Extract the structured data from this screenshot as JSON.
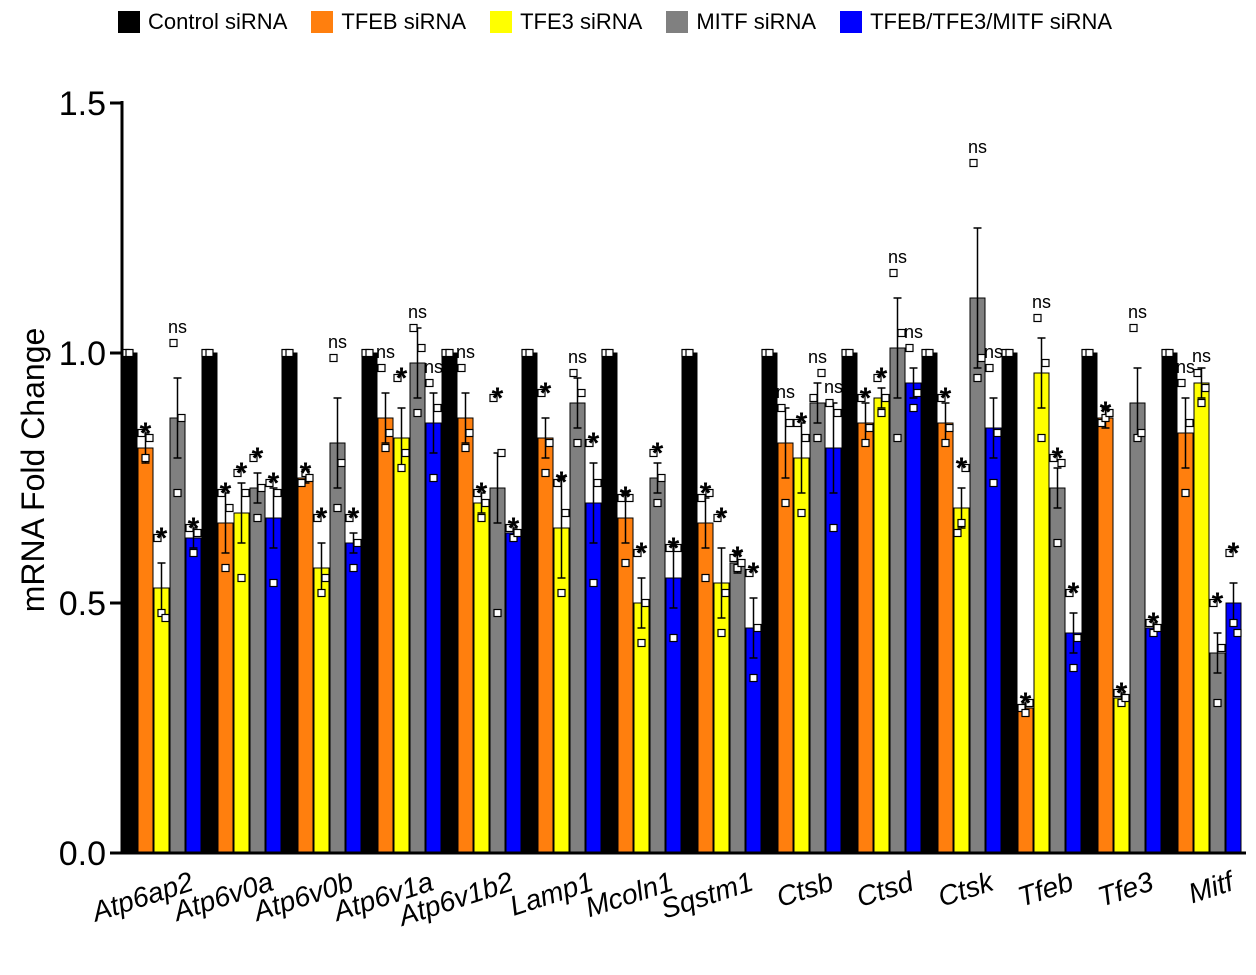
{
  "chart_data": {
    "type": "bar",
    "ylabel": "mRNA Fold Change",
    "ylim": [
      0,
      1.5
    ],
    "yticks": [
      0.0,
      0.5,
      1.0,
      1.5
    ],
    "ytick_labels": [
      "0.0",
      "0.5",
      "1.0",
      "1.5"
    ],
    "legend_position": "top",
    "categories": [
      "Atp6ap2",
      "Atp6v0a",
      "Atp6v0b",
      "Atp6v1a",
      "Atp6v1b2",
      "Lamp1",
      "Mcoln1",
      "Sqstm1",
      "Ctsb",
      "Ctsd",
      "Ctsk",
      "Tfeb",
      "Tfe3",
      "Mitf"
    ],
    "series": [
      {
        "name": "Control siRNA",
        "color": "#000000",
        "values": [
          1,
          1,
          1,
          1,
          1,
          1,
          1,
          1,
          1,
          1,
          1,
          1,
          1,
          1
        ],
        "errors": [
          0,
          0,
          0,
          0,
          0,
          0,
          0,
          0,
          0,
          0,
          0,
          0,
          0,
          0
        ],
        "points": [
          [
            1,
            1
          ],
          [
            1,
            1
          ],
          [
            1,
            1
          ],
          [
            1,
            1
          ],
          [
            1,
            1
          ],
          [
            1,
            1
          ],
          [
            1,
            1
          ],
          [
            1,
            1
          ],
          [
            1,
            1
          ],
          [
            1,
            1
          ],
          [
            1,
            1
          ],
          [
            1,
            1
          ],
          [
            1,
            1
          ],
          [
            1,
            1
          ]
        ],
        "annotations": [
          "",
          "",
          "",
          "",
          "",
          "",
          "",
          "",
          "",
          "",
          "",
          "",
          "",
          ""
        ]
      },
      {
        "name": "TFEB siRNA",
        "color": "#ff7f0e",
        "values": [
          0.81,
          0.66,
          0.75,
          0.87,
          0.87,
          0.83,
          0.67,
          0.66,
          0.82,
          0.86,
          0.86,
          0.29,
          0.87,
          0.84
        ],
        "errors": [
          0.03,
          0.06,
          0.01,
          0.05,
          0.05,
          0.04,
          0.05,
          0.05,
          0.07,
          0.04,
          0.04,
          0.01,
          0.02,
          0.07
        ],
        "points": [
          [
            0.84,
            0.79,
            0.83
          ],
          [
            0.72,
            0.57,
            0.69
          ],
          [
            0.74,
            0.76,
            0.75
          ],
          [
            0.97,
            0.81,
            0.84
          ],
          [
            0.97,
            0.81,
            0.84
          ],
          [
            0.92,
            0.76,
            0.82
          ],
          [
            0.71,
            0.58,
            0.71
          ],
          [
            0.71,
            0.55,
            0.72
          ],
          [
            0.89,
            0.7,
            0.86
          ],
          [
            0.91,
            0.82,
            0.85
          ],
          [
            0.91,
            0.82,
            0.85
          ],
          [
            0.29,
            0.28,
            0.3
          ],
          [
            0.86,
            0.87,
            0.88
          ],
          [
            0.94,
            0.72,
            0.86
          ]
        ],
        "annotations": [
          "*",
          "*",
          "*",
          "ns",
          "ns",
          "*",
          "*",
          "*",
          "ns",
          "*",
          "*",
          "*",
          "*",
          "ns"
        ]
      },
      {
        "name": "TFE3 siRNA",
        "color": "#ffff00",
        "values": [
          0.53,
          0.68,
          0.57,
          0.83,
          0.7,
          0.65,
          0.5,
          0.54,
          0.79,
          0.91,
          0.69,
          0.96,
          0.31,
          0.94
        ],
        "errors": [
          0.05,
          0.06,
          0.05,
          0.06,
          0.02,
          0.1,
          0.05,
          0.07,
          0.07,
          0.02,
          0.04,
          0.07,
          0.01,
          0.03
        ],
        "points": [
          [
            0.63,
            0.48,
            0.47
          ],
          [
            0.76,
            0.55,
            0.72
          ],
          [
            0.67,
            0.52,
            0.55
          ],
          [
            0.95,
            0.77,
            0.8
          ],
          [
            0.72,
            0.67,
            0.7
          ],
          [
            0.74,
            0.52,
            0.68
          ],
          [
            0.6,
            0.42,
            0.5
          ],
          [
            0.67,
            0.44,
            0.52
          ],
          [
            0.86,
            0.68,
            0.83
          ],
          [
            0.95,
            0.88,
            0.91
          ],
          [
            0.64,
            0.66,
            0.77
          ],
          [
            1.07,
            0.83,
            0.98
          ],
          [
            0.32,
            0.3,
            0.31
          ],
          [
            0.96,
            0.9,
            0.93
          ]
        ],
        "annotations": [
          "*",
          "*",
          "*",
          "*",
          "*",
          "*",
          "*",
          "*",
          "*",
          "*",
          "*",
          "ns",
          "*",
          "ns"
        ]
      },
      {
        "name": "MITF siRNA",
        "color": "#808080",
        "values": [
          0.87,
          0.73,
          0.82,
          0.98,
          0.73,
          0.9,
          0.75,
          0.58,
          0.9,
          1.01,
          1.11,
          0.73,
          0.9,
          0.4
        ],
        "errors": [
          0.08,
          0.03,
          0.09,
          0.07,
          0.07,
          0.05,
          0.03,
          0.02,
          0.04,
          0.1,
          0.14,
          0.04,
          0.07,
          0.04
        ],
        "points": [
          [
            1.02,
            0.72,
            0.87
          ],
          [
            0.79,
            0.67,
            0.73
          ],
          [
            0.99,
            0.69,
            0.78
          ],
          [
            1.05,
            0.88,
            1.01
          ],
          [
            0.91,
            0.48,
            0.8
          ],
          [
            0.96,
            0.82,
            0.92
          ],
          [
            0.8,
            0.7,
            0.75
          ],
          [
            0.59,
            0.57,
            0.58
          ],
          [
            0.91,
            0.83,
            0.96
          ],
          [
            1.16,
            0.83,
            1.04
          ],
          [
            1.38,
            0.95,
            0.99
          ],
          [
            0.79,
            0.62,
            0.78
          ],
          [
            1.05,
            0.83,
            0.84
          ],
          [
            0.5,
            0.3,
            0.41
          ]
        ],
        "annotations": [
          "ns",
          "*",
          "ns",
          "ns",
          "*",
          "ns",
          "*",
          "*",
          "ns",
          "ns",
          "ns",
          "*",
          "ns",
          "*"
        ]
      },
      {
        "name": "TFEB/TFE3/MITF siRNA",
        "color": "#0000ff",
        "values": [
          0.63,
          0.67,
          0.62,
          0.86,
          0.64,
          0.7,
          0.55,
          0.45,
          0.81,
          0.94,
          0.85,
          0.44,
          0.45,
          0.5
        ],
        "errors": [
          0.02,
          0.06,
          0.02,
          0.06,
          0.01,
          0.08,
          0.06,
          0.06,
          0.09,
          0.03,
          0.06,
          0.04,
          0.01,
          0.04
        ],
        "points": [
          [
            0.65,
            0.6,
            0.64
          ],
          [
            0.74,
            0.54,
            0.72
          ],
          [
            0.67,
            0.57,
            0.62
          ],
          [
            0.94,
            0.75,
            0.89
          ],
          [
            0.65,
            0.63,
            0.64
          ],
          [
            0.82,
            0.54,
            0.74
          ],
          [
            0.61,
            0.43,
            0.61
          ],
          [
            0.56,
            0.35,
            0.45
          ],
          [
            0.9,
            0.65,
            0.88
          ],
          [
            1.01,
            0.89,
            0.92
          ],
          [
            0.97,
            0.74,
            0.84
          ],
          [
            0.52,
            0.37,
            0.43
          ],
          [
            0.46,
            0.44,
            0.45
          ],
          [
            0.6,
            0.46,
            0.44
          ]
        ],
        "annotations": [
          "*",
          "*",
          "*",
          "ns",
          "*",
          "*",
          "*",
          "*",
          "ns",
          "ns",
          "ns",
          "*",
          "*",
          "*"
        ]
      }
    ]
  }
}
